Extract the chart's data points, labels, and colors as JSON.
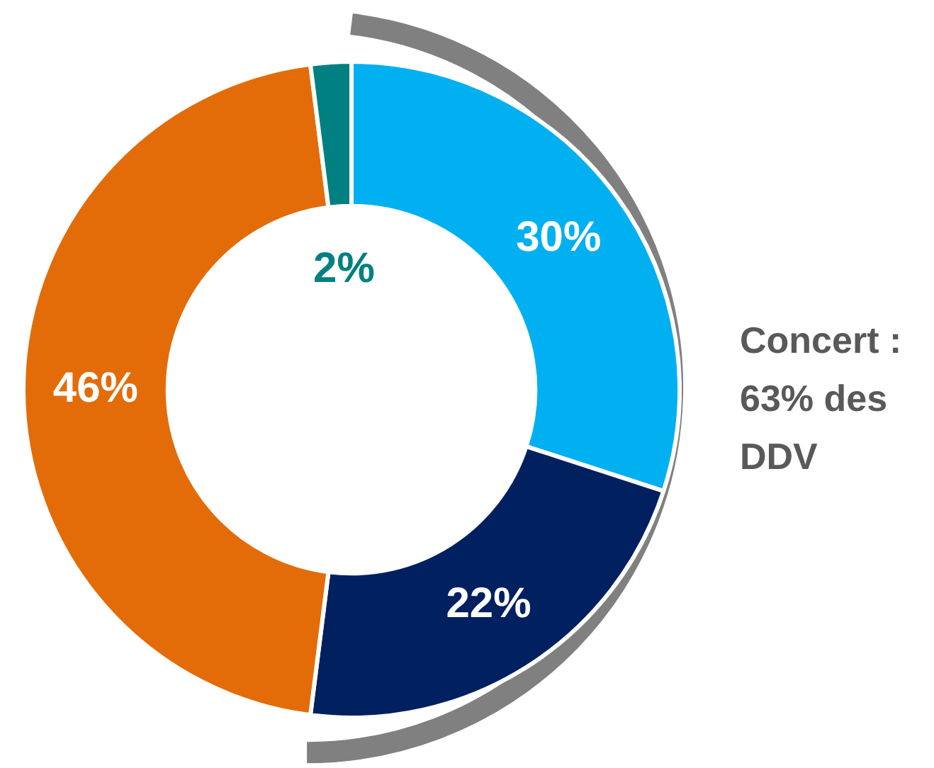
{
  "chart_data": {
    "type": "donut",
    "categories": [
      null,
      null,
      null,
      null
    ],
    "values": [
      30,
      22,
      46,
      2
    ],
    "colors": [
      "#00b0f0",
      "#002060",
      "#e36c09",
      "#008080"
    ],
    "value_labels": [
      "30%",
      "22%",
      "46%",
      "2%"
    ],
    "legend": false,
    "annotations": [
      "Concert : 63% des DDV"
    ]
  }
}
